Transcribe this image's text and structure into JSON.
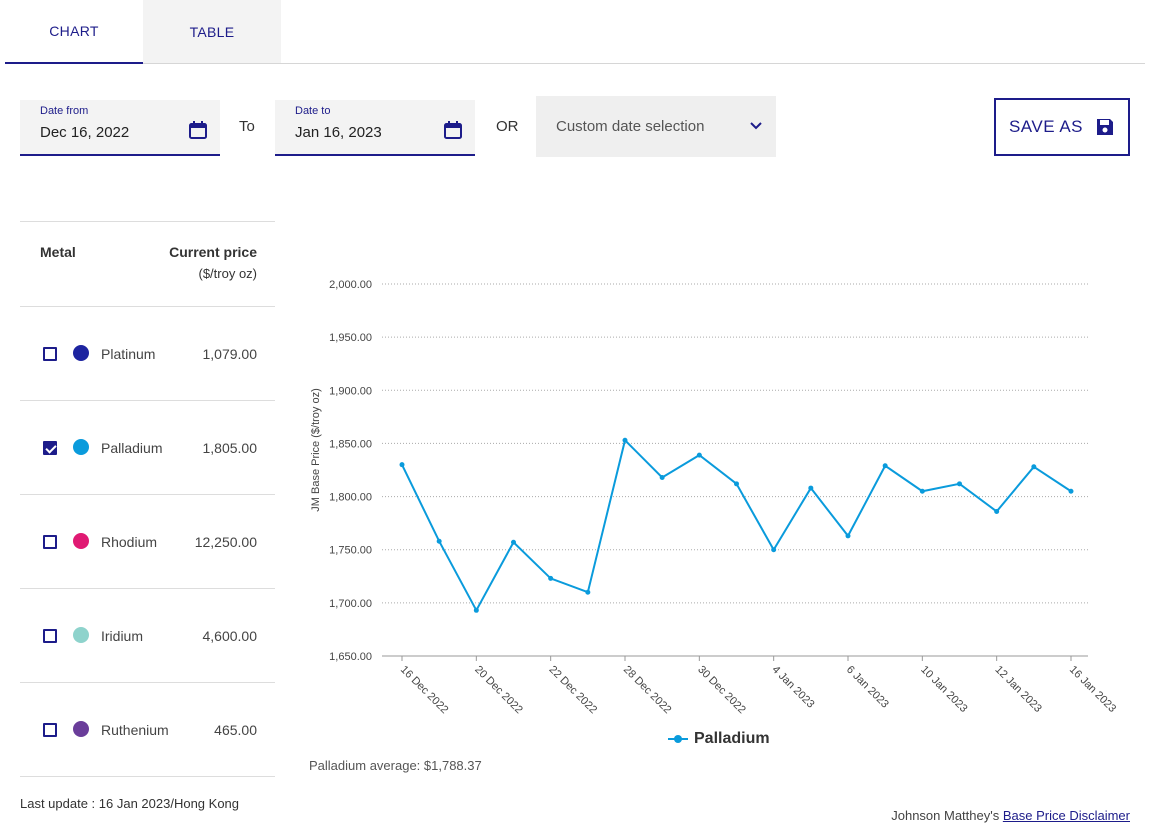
{
  "tabs": [
    {
      "label": "CHART",
      "active": true
    },
    {
      "label": "TABLE",
      "active": false
    }
  ],
  "date_from": {
    "label": "Date from",
    "value": "Dec 16, 2022"
  },
  "date_to": {
    "label": "Date to",
    "value": "Jan 16, 2023"
  },
  "to_text": "To",
  "or_text": "OR",
  "custom_select": {
    "value": "Custom date selection"
  },
  "save_button": {
    "label": "SAVE AS"
  },
  "metal_table": {
    "header_metal": "Metal",
    "header_price": "Current price",
    "header_unit": "($/troy oz)",
    "rows": [
      {
        "name": "Platinum",
        "price": "1,079.00",
        "color": "#1d24a0",
        "checked": false
      },
      {
        "name": "Palladium",
        "price": "1,805.00",
        "color": "#0a9bdc",
        "checked": true
      },
      {
        "name": "Rhodium",
        "price": "12,250.00",
        "color": "#e01a73",
        "checked": false
      },
      {
        "name": "Iridium",
        "price": "4,600.00",
        "color": "#8ed3cc",
        "checked": false
      },
      {
        "name": "Ruthenium",
        "price": "465.00",
        "color": "#6a3d9a",
        "checked": false
      }
    ]
  },
  "last_update": "Last update : 16 Jan 2023/Hong Kong",
  "chart_data": {
    "type": "line",
    "ylabel": "JM Base Price ($/troy oz)",
    "ylim": [
      1650,
      2000
    ],
    "y_ticks": [
      "2,000.00",
      "1,950.00",
      "1,900.00",
      "1,850.00",
      "1,800.00",
      "1,750.00",
      "1,700.00",
      "1,650.00"
    ],
    "y_tick_values": [
      2000,
      1950,
      1900,
      1850,
      1800,
      1750,
      1700,
      1650
    ],
    "grid": "horizontal dotted",
    "x": [
      "16 Dec 2022",
      "19 Dec 2022",
      "20 Dec 2022",
      "21 Dec 2022",
      "22 Dec 2022",
      "23 Dec 2022",
      "28 Dec 2022",
      "29 Dec 2022",
      "30 Dec 2022",
      "3 Jan 2023",
      "4 Jan 2023",
      "5 Jan 2023",
      "6 Jan 2023",
      "9 Jan 2023",
      "10 Jan 2023",
      "11 Jan 2023",
      "12 Jan 2023",
      "13 Jan 2023",
      "16 Jan 2023"
    ],
    "x_tick_labels": [
      "16 Dec 2022",
      "20 Dec 2022",
      "22 Dec 2022",
      "28 Dec 2022",
      "30 Dec 2022",
      "4 Jan 2023",
      "6 Jan 2023",
      "10 Jan 2023",
      "12 Jan 2023",
      "16 Jan 2023"
    ],
    "series": [
      {
        "name": "Palladium",
        "color": "#0a9bdc",
        "values": [
          1830,
          1758,
          1693,
          1757,
          1723,
          1710,
          1853,
          1818,
          1839,
          1812,
          1750,
          1808,
          1763,
          1829,
          1805,
          1812,
          1786,
          1828,
          1805
        ]
      }
    ],
    "legend": "bottom-center"
  },
  "average_text": "Palladium average: $1,788.37",
  "disclaimer": {
    "prefix": "Johnson Matthey's ",
    "link": "Base Price Disclaimer"
  }
}
